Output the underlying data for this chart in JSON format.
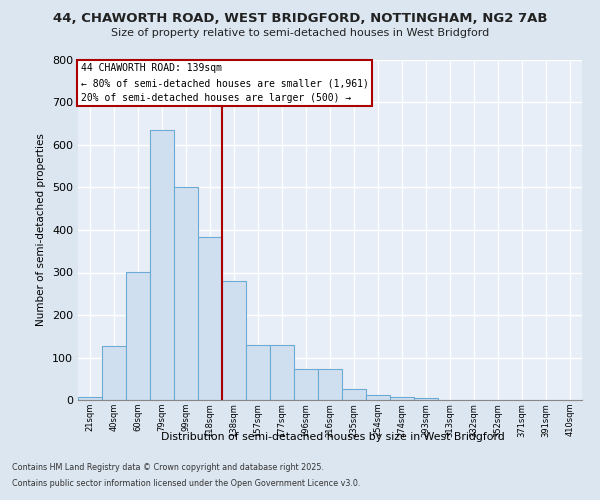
{
  "title_line1": "44, CHAWORTH ROAD, WEST BRIDGFORD, NOTTINGHAM, NG2 7AB",
  "title_line2": "Size of property relative to semi-detached houses in West Bridgford",
  "xlabel": "Distribution of semi-detached houses by size in West Bridgford",
  "ylabel": "Number of semi-detached properties",
  "bin_labels": [
    "21sqm",
    "40sqm",
    "60sqm",
    "79sqm",
    "99sqm",
    "118sqm",
    "138sqm",
    "157sqm",
    "177sqm",
    "196sqm",
    "216sqm",
    "235sqm",
    "254sqm",
    "274sqm",
    "293sqm",
    "313sqm",
    "332sqm",
    "352sqm",
    "371sqm",
    "391sqm",
    "410sqm"
  ],
  "bar_values": [
    8,
    128,
    302,
    636,
    502,
    384,
    280,
    130,
    130,
    72,
    72,
    25,
    12,
    8,
    5,
    0,
    0,
    0,
    0,
    0,
    0
  ],
  "bar_color": "#d0dff0",
  "bar_edge_color": "#6aaad4",
  "vline_color": "#aa0000",
  "ylim": [
    0,
    800
  ],
  "yticks": [
    0,
    100,
    200,
    300,
    400,
    500,
    600,
    700,
    800
  ],
  "annotation_title": "44 CHAWORTH ROAD: 139sqm",
  "annotation_line1": "← 80% of semi-detached houses are smaller (1,961)",
  "annotation_line2": "20% of semi-detached houses are larger (500) →",
  "footnote_line1": "Contains HM Land Registry data © Crown copyright and database right 2025.",
  "footnote_line2": "Contains public sector information licensed under the Open Government Licence v3.0.",
  "background_color": "#dce6f0",
  "plot_background_color": "#e8eef7",
  "grid_color": "#ffffff",
  "n_bins": 21,
  "vline_bin_index": 6
}
